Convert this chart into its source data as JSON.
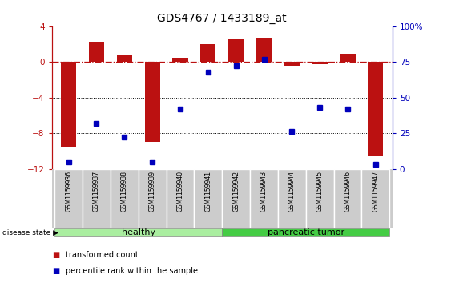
{
  "title": "GDS4767 / 1433189_at",
  "samples": [
    "GSM1159936",
    "GSM1159937",
    "GSM1159938",
    "GSM1159939",
    "GSM1159940",
    "GSM1159941",
    "GSM1159942",
    "GSM1159943",
    "GSM1159944",
    "GSM1159945",
    "GSM1159946",
    "GSM1159947"
  ],
  "transformed_count": [
    -9.5,
    2.2,
    0.8,
    -9.0,
    0.5,
    2.0,
    2.5,
    2.6,
    -0.4,
    -0.3,
    0.9,
    -10.5
  ],
  "percentile_rank": [
    5,
    32,
    22,
    5,
    42,
    68,
    72,
    77,
    26,
    43,
    42,
    3
  ],
  "ylim_left": [
    -12,
    4
  ],
  "ylim_right": [
    0,
    100
  ],
  "yticks_left": [
    4,
    0,
    -4,
    -8,
    -12
  ],
  "yticks_right": [
    100,
    75,
    50,
    25,
    0
  ],
  "dotted_lines": [
    -4,
    -8
  ],
  "bar_color": "#BB1111",
  "dot_color": "#0000BB",
  "background_color": "#FFFFFF",
  "healthy_color": "#AAEEA0",
  "tumor_color": "#44CC44",
  "tick_color_left": "#BB1111",
  "tick_color_right": "#0000BB",
  "healthy_label": "healthy",
  "tumor_label": "pancreatic tumor",
  "disease_state_label": "disease state",
  "legend_bar": "transformed count",
  "legend_dot": "percentile rank within the sample",
  "healthy_count": 6,
  "tumor_count": 6
}
